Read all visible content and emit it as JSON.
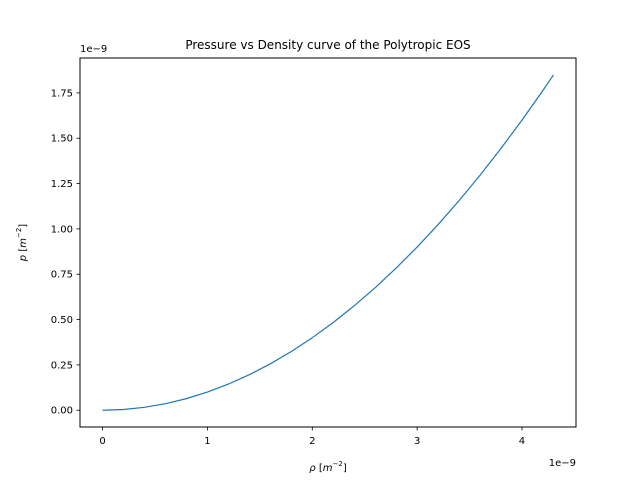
{
  "chart_data": {
    "type": "line",
    "title": "Pressure vs Density curve of the Polytropic EOS",
    "xlabel_symbol": "ρ",
    "ylabel_symbol": "p",
    "unit_base": "m",
    "unit_exp": "−2",
    "x_offset_text": "1e−9",
    "y_offset_text": "1e−9",
    "xlim": [
      -0.215,
      4.515
    ],
    "ylim": [
      -0.0925,
      1.9425
    ],
    "x_ticks": [
      {
        "value": 0,
        "label": "0"
      },
      {
        "value": 1,
        "label": "1"
      },
      {
        "value": 2,
        "label": "2"
      },
      {
        "value": 3,
        "label": "3"
      },
      {
        "value": 4,
        "label": "4"
      }
    ],
    "y_ticks": [
      {
        "value": 0,
        "label": "0.00"
      },
      {
        "value": 0.25,
        "label": "0.25"
      },
      {
        "value": 0.5,
        "label": "0.50"
      },
      {
        "value": 0.75,
        "label": "0.75"
      },
      {
        "value": 1.0,
        "label": "1.00"
      },
      {
        "value": 1.25,
        "label": "1.25"
      },
      {
        "value": 1.5,
        "label": "1.50"
      },
      {
        "value": 1.75,
        "label": "1.75"
      }
    ],
    "grid": false,
    "series": [
      {
        "color": "#1f77b4",
        "x": [
          0.0,
          0.2,
          0.4,
          0.6,
          0.8,
          1.0,
          1.2,
          1.4,
          1.6,
          1.8,
          2.0,
          2.2,
          2.4,
          2.6,
          2.8,
          3.0,
          3.2,
          3.4,
          3.6,
          3.8,
          4.0,
          4.2,
          4.3
        ],
        "y": [
          0.0,
          0.004,
          0.016,
          0.036,
          0.064,
          0.1,
          0.144,
          0.196,
          0.256,
          0.324,
          0.4,
          0.484,
          0.576,
          0.676,
          0.784,
          0.9,
          1.024,
          1.156,
          1.296,
          1.444,
          1.6,
          1.764,
          1.849
        ]
      }
    ]
  }
}
